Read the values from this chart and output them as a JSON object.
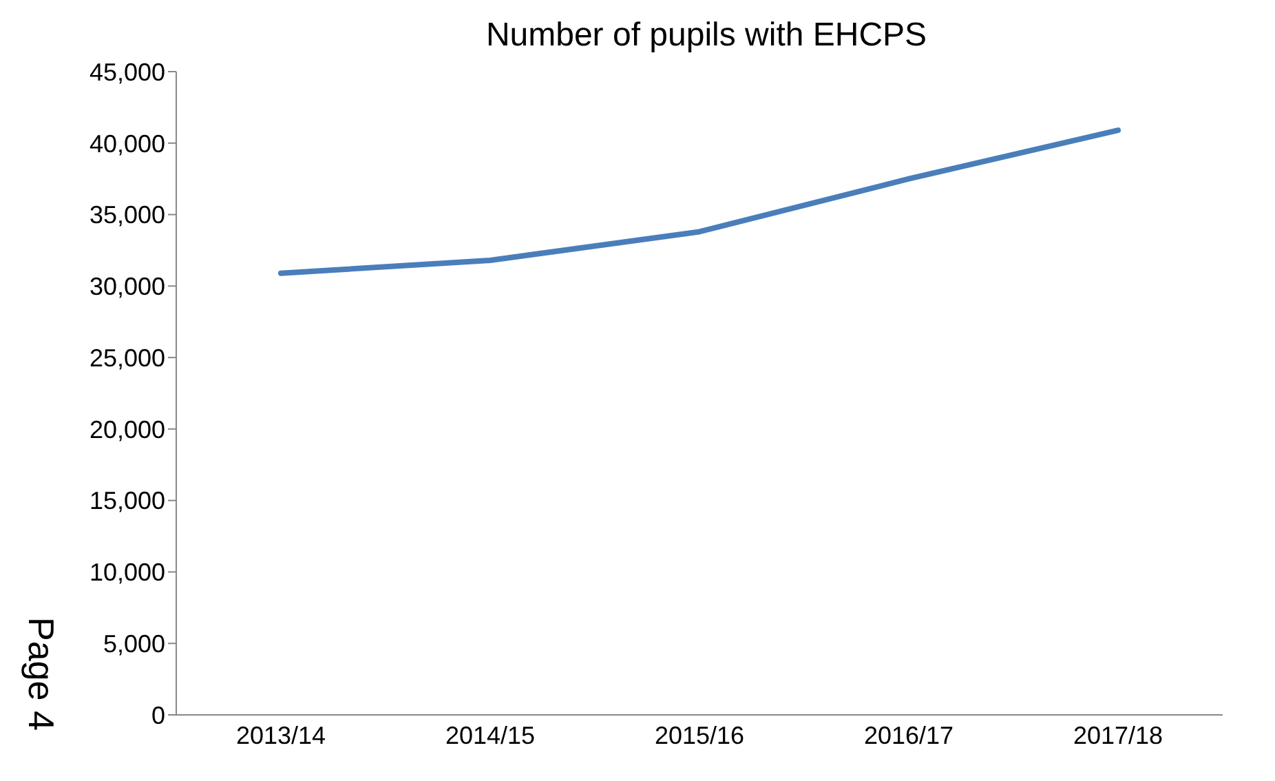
{
  "chart_data": {
    "type": "line",
    "title": "Number of pupils with EHCPS",
    "categories": [
      "2013/14",
      "2014/15",
      "2015/16",
      "2016/17",
      "2017/18"
    ],
    "series": [
      {
        "color": "#4a7ebb",
        "values": [
          30900,
          31800,
          33800,
          37500,
          40900
        ]
      }
    ],
    "ylim": [
      0,
      45000
    ],
    "yticks": [
      0,
      {
        "value": 5000,
        "label": "5,000"
      },
      {
        "value": 10000,
        "label": "10,000"
      },
      {
        "value": 15000,
        "label": "15,000"
      },
      {
        "value": 20000,
        "label": "20,000"
      },
      {
        "value": 25000,
        "label": "25,000"
      },
      {
        "value": 30000,
        "label": "30,000"
      },
      {
        "value": 35000,
        "label": "35,000"
      },
      {
        "value": 40000,
        "label": "40,000"
      },
      {
        "value": 45000,
        "label": "45,000"
      }
    ],
    "grid": false,
    "legend": false,
    "marker": "none",
    "line_style": "solid",
    "annotations": [
      "Page 4"
    ]
  }
}
